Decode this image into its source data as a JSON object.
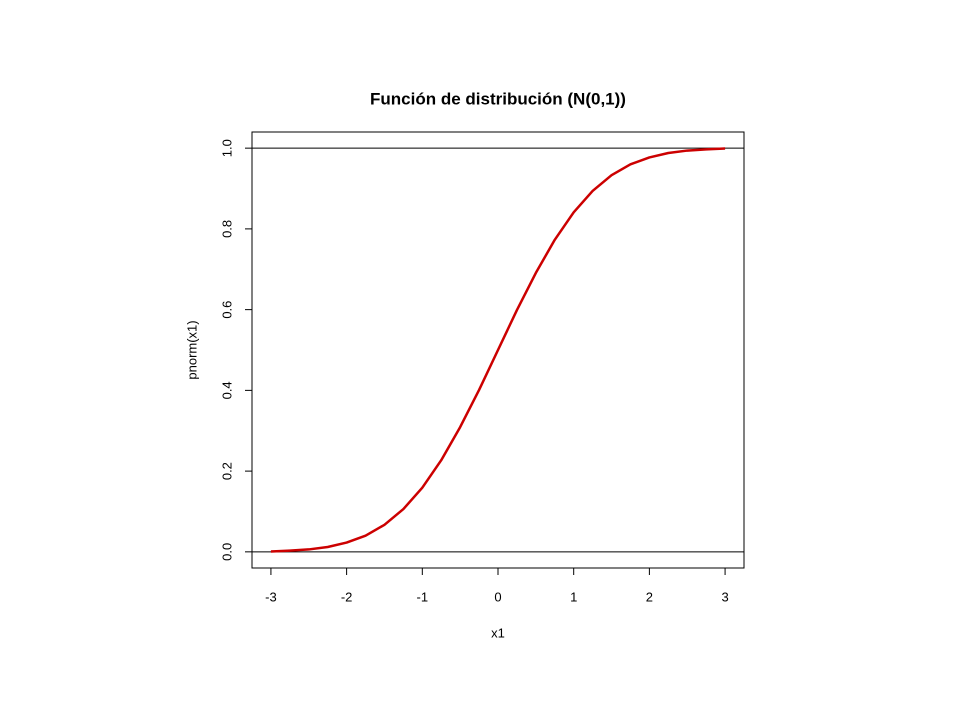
{
  "chart_data": {
    "type": "line",
    "title": "Función de distribución (N(0,1))",
    "x_label": "x1",
    "y_label": "pnorm(x1)",
    "x": [
      -3,
      -2.75,
      -2.5,
      -2.25,
      -2,
      -1.75,
      -1.5,
      -1.25,
      -1,
      -0.75,
      -0.5,
      -0.25,
      0,
      0.25,
      0.5,
      0.75,
      1,
      1.25,
      1.5,
      1.75,
      2,
      2.25,
      2.5,
      2.75,
      3
    ],
    "values": [
      0.001,
      0.003,
      0.006,
      0.012,
      0.023,
      0.04,
      0.067,
      0.106,
      0.159,
      0.227,
      0.309,
      0.401,
      0.5,
      0.599,
      0.691,
      0.773,
      0.841,
      0.894,
      0.933,
      0.96,
      0.977,
      0.988,
      0.994,
      0.997,
      0.999
    ],
    "color": "#cc0000",
    "hlines": [
      0,
      1
    ],
    "xlim": [
      -3.25,
      3.25
    ],
    "xticks": [
      -3,
      -2,
      -1,
      0,
      1,
      2,
      3
    ],
    "ylim": [
      -0.04,
      1.04
    ],
    "yticks": [
      {
        "value": 0,
        "label": "0.0"
      },
      0.2,
      0.4,
      0.6,
      0.8,
      {
        "value": 1,
        "label": "1.0"
      }
    ]
  }
}
